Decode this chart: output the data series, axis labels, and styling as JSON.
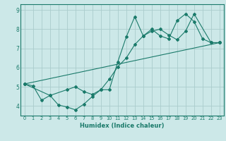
{
  "title": "",
  "xlabel": "Humidex (Indice chaleur)",
  "xlim": [
    -0.5,
    23.5
  ],
  "ylim": [
    3.5,
    9.3
  ],
  "yticks": [
    4,
    5,
    6,
    7,
    8,
    9
  ],
  "xticks": [
    0,
    1,
    2,
    3,
    4,
    5,
    6,
    7,
    8,
    9,
    10,
    11,
    12,
    13,
    14,
    15,
    16,
    17,
    18,
    19,
    20,
    21,
    22,
    23
  ],
  "bg_color": "#cce8e8",
  "line_color": "#1a7a6a",
  "grid_color": "#aacccc",
  "line1_x": [
    0,
    1,
    2,
    3,
    4,
    5,
    6,
    7,
    8,
    9,
    10,
    11,
    12,
    13,
    14,
    15,
    16,
    17,
    18,
    19,
    20,
    21,
    22,
    23
  ],
  "line1_y": [
    5.15,
    5.05,
    4.3,
    4.55,
    4.05,
    3.95,
    3.8,
    4.1,
    4.5,
    4.85,
    4.85,
    6.3,
    7.6,
    8.65,
    7.65,
    8.0,
    7.65,
    7.5,
    8.45,
    8.8,
    8.4,
    7.5,
    7.3,
    7.3
  ],
  "line2_x": [
    0,
    3,
    5,
    6,
    7,
    8,
    9,
    10,
    11,
    12,
    13,
    14,
    15,
    16,
    17,
    18,
    19,
    20,
    22,
    23
  ],
  "line2_y": [
    5.15,
    4.55,
    4.85,
    5.0,
    4.75,
    4.6,
    4.85,
    5.4,
    6.05,
    6.5,
    7.2,
    7.65,
    7.9,
    8.0,
    7.7,
    7.45,
    7.9,
    8.8,
    7.3,
    7.3
  ],
  "line3_x": [
    0,
    23
  ],
  "line3_y": [
    5.15,
    7.3
  ]
}
